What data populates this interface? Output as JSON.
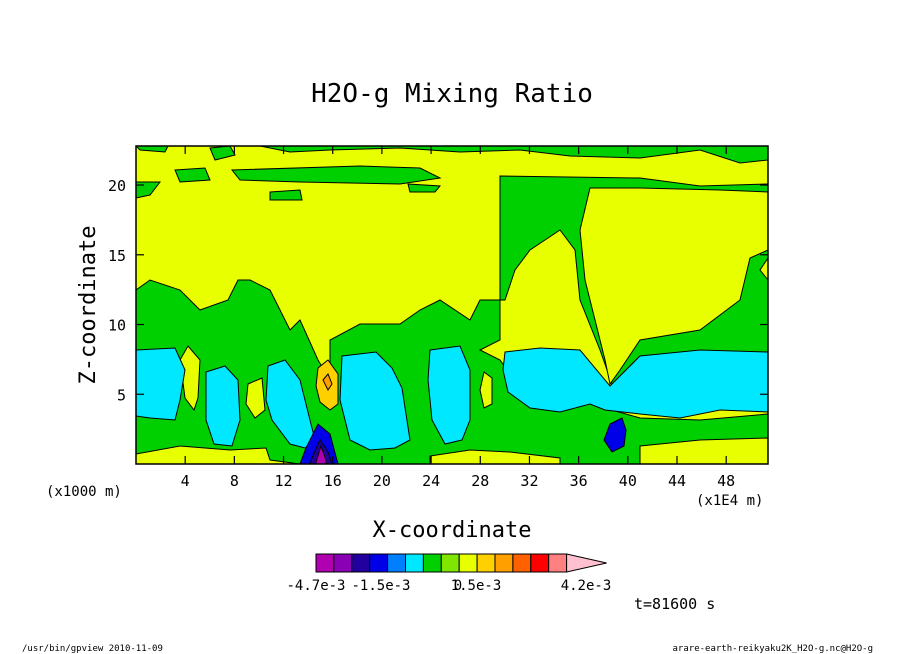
{
  "chart_data": {
    "type": "heatmap",
    "title": "H2O-g Mixing Ratio",
    "xlabel": "X-coordinate",
    "ylabel": "Z-coordinate",
    "x_unit_label": "(x1E4 m)",
    "y_unit_label": "(x1000 m)",
    "xlim": [
      0,
      51.4
    ],
    "ylim": [
      0,
      22.8
    ],
    "x_ticks": [
      "4",
      "8",
      "12",
      "16",
      "20",
      "24",
      "28",
      "32",
      "36",
      "40",
      "44",
      "48"
    ],
    "y_ticks": [
      "5",
      "10",
      "15",
      "20"
    ],
    "time_label": "t=81600 s",
    "colorbar": {
      "colors": [
        "#b000b0",
        "#8a00b4",
        "#2200a0",
        "#0000e8",
        "#0080ff",
        "#00e8ff",
        "#00d000",
        "#80e600",
        "#e8ff00",
        "#ffd000",
        "#ffa000",
        "#ff6000",
        "#ff0000",
        "#ff8080",
        "#ffc0d0"
      ],
      "labels": [
        "-4.7e-3",
        "-1.5e-3",
        "0",
        "1.5e-3",
        "4.2e-3"
      ]
    },
    "regions": [
      {
        "level": "0 to 0.75e-3",
        "color": "#00d000"
      },
      {
        "level": "0.75e-3 to 1.5e-3",
        "color": "#e8ff00"
      },
      {
        "level": "-0.75e-3 to 0",
        "color": "#00e8ff"
      },
      {
        "level": "-1.5e-3 to -0.75e-3",
        "color": "#0080ff"
      },
      {
        "level": "below -2.5e-3",
        "color": "#b000b0"
      },
      {
        "level": "above 2.5e-3",
        "color": "#ffd000"
      }
    ]
  },
  "footer": {
    "left": "/usr/bin/gpview   2010-11-09",
    "right": "arare-earth-reikyaku2K_H2O-g.nc@H2O-g"
  }
}
